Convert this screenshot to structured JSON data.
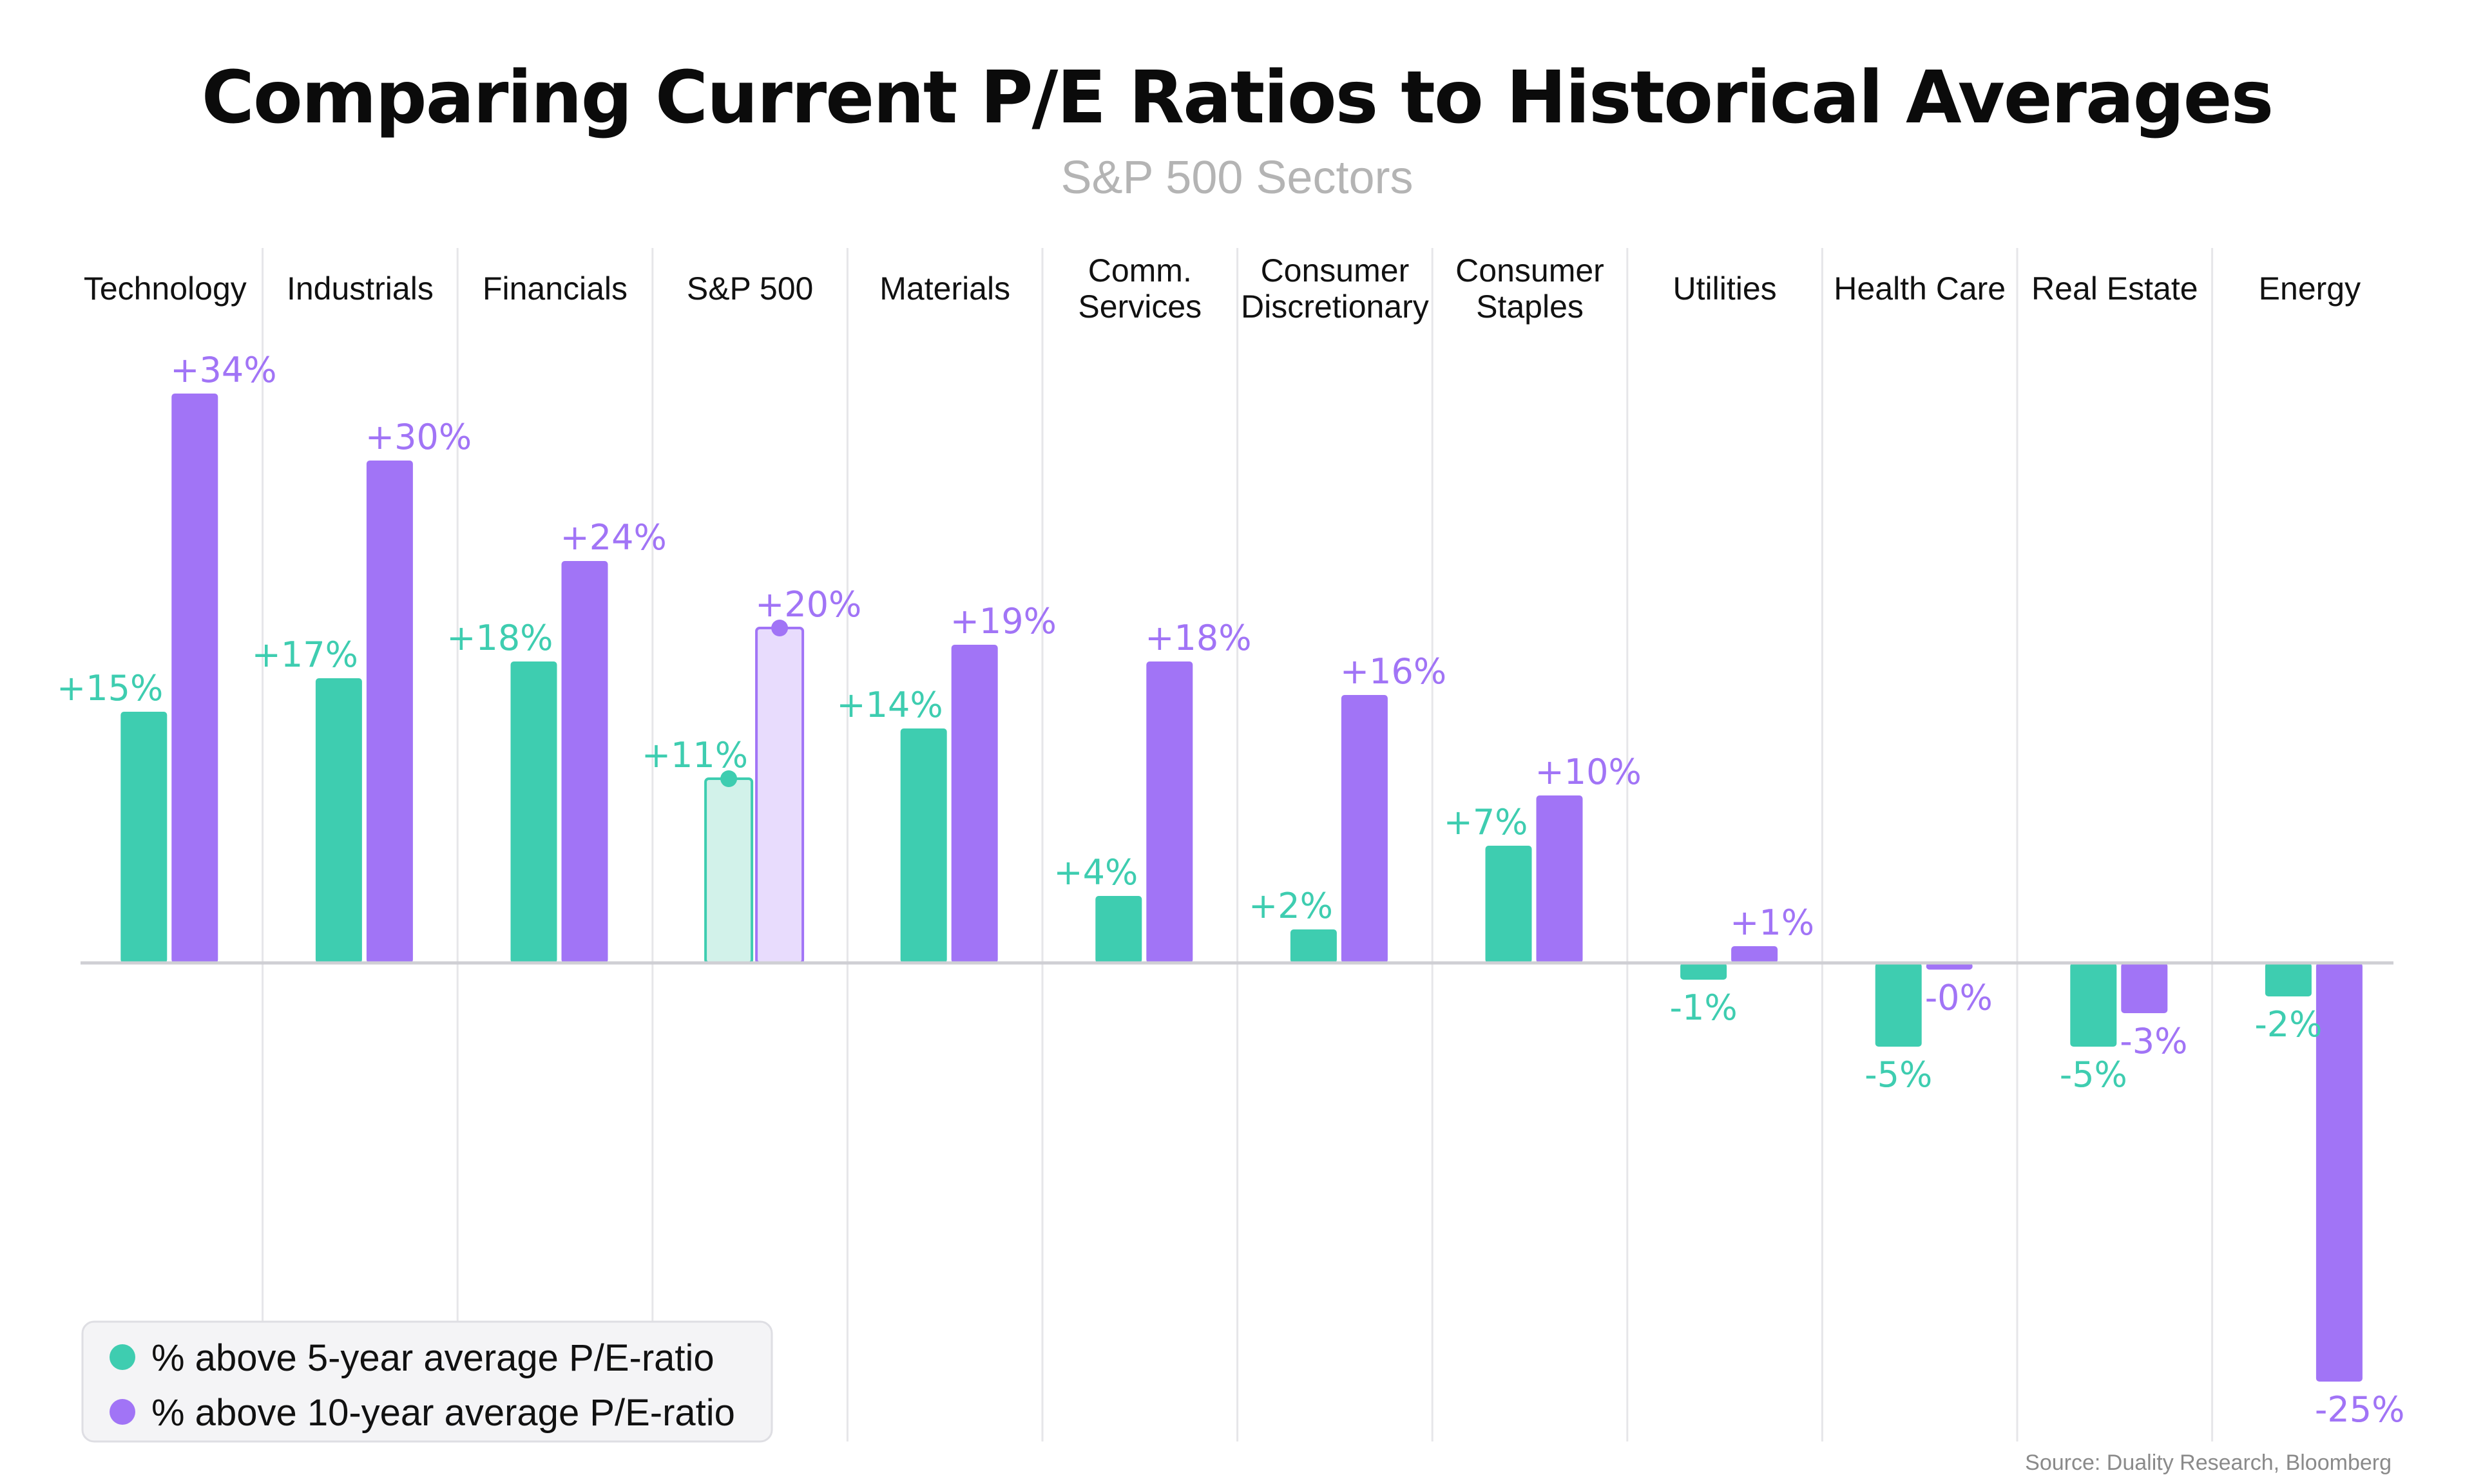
{
  "chart_data": {
    "type": "bar",
    "title": "Comparing Current P/E Ratios to Historical Averages",
    "subtitle": "S&P 500 Sectors",
    "categories": [
      [
        "Technology"
      ],
      [
        "Industrials"
      ],
      [
        "Financials"
      ],
      [
        "S&P 500"
      ],
      [
        "Materials"
      ],
      [
        "Comm.",
        "Services"
      ],
      [
        "Consumer",
        "Discretionary"
      ],
      [
        "Consumer",
        "Staples"
      ],
      [
        "Utilities"
      ],
      [
        "Health Care"
      ],
      [
        "Real Estate"
      ],
      [
        "Energy"
      ]
    ],
    "series": [
      {
        "name": "% above 5-year average P/E-ratio",
        "color": "#3ecdb0",
        "values": [
          15,
          17,
          18,
          11,
          14,
          4,
          2,
          7,
          -1,
          -5,
          -5,
          -2
        ],
        "labels": [
          "+15%",
          "+17%",
          "+18%",
          "+11%",
          "+14%",
          "+4%",
          "+2%",
          "+7%",
          "-1%",
          "-5%",
          "-5%",
          "-2%"
        ]
      },
      {
        "name": "% above 10-year average P/E-ratio",
        "color": "#a174f6",
        "values": [
          34,
          30,
          24,
          20,
          19,
          18,
          16,
          10,
          1,
          -0.4,
          -3,
          -25
        ],
        "labels": [
          "+34%",
          "+30%",
          "+24%",
          "+20%",
          "+19%",
          "+18%",
          "+16%",
          "+10%",
          "+1%",
          "-0%",
          "-3%",
          "-25%"
        ]
      }
    ],
    "highlighted_category": "S&P 500",
    "highlight_fill_colors": [
      "#d2f2ea",
      "#e8dcfd"
    ],
    "ylim": [
      -25,
      34
    ],
    "xlabel": "",
    "ylabel": "",
    "grid": false,
    "legend_position": "bottom-left",
    "source": "Source: Duality Research, Bloomberg"
  }
}
